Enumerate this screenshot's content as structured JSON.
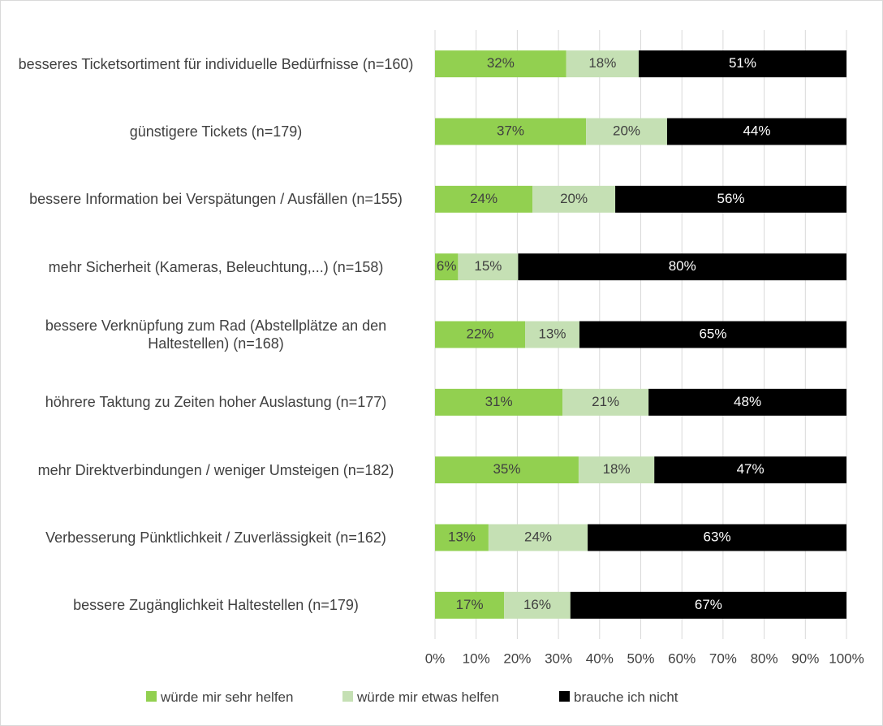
{
  "chart_data": {
    "type": "stacked_barh",
    "categories": [
      "besseres Ticketsortiment für individuelle Bedürfnisse (n=160)",
      "günstigere Tickets (n=179)",
      "bessere Information bei Verspätungen / Ausfällen (n=155)",
      "mehr Sicherheit (Kameras, Beleuchtung,...) (n=158)",
      "bessere Verknüpfung zum Rad (Abstellplätze an den Haltestellen) (n=168)",
      "höhrere Taktung zu Zeiten hoher Auslastung (n=177)",
      "mehr Direktverbindungen / weniger Umsteigen (n=182)",
      "Verbesserung Pünktlichkeit / Zuverlässigkeit (n=162)",
      "bessere Zugänglichkeit Haltestellen (n=179)"
    ],
    "series": [
      {
        "name": "würde mir sehr helfen",
        "color": "#92d050",
        "values": [
          31.9,
          36.7,
          23.7,
          5.6,
          21.9,
          31.0,
          34.9,
          13.0,
          16.8
        ],
        "value_labels": [
          "32%",
          "37%",
          "24%",
          "6%",
          "22%",
          "31%",
          "35%",
          "13%",
          "17%"
        ]
      },
      {
        "name": "würde mir etwas helfen",
        "color": "#c5e0b4",
        "values": [
          17.6,
          19.7,
          20.1,
          14.6,
          13.2,
          20.9,
          18.4,
          24.1,
          16.1
        ],
        "value_labels": [
          "18%",
          "20%",
          "20%",
          "15%",
          "13%",
          "21%",
          "18%",
          "24%",
          "16%"
        ]
      },
      {
        "name": "brauche ich nicht",
        "color": "#000000",
        "values": [
          50.5,
          43.6,
          56.2,
          79.8,
          64.9,
          48.1,
          46.7,
          62.9,
          67.1
        ],
        "value_labels": [
          "51%",
          "44%",
          "56%",
          "80%",
          "65%",
          "48%",
          "47%",
          "63%",
          "67%"
        ]
      }
    ],
    "xlim": [
      0,
      100
    ],
    "xticks": [
      {
        "value": 0,
        "label": "0%"
      },
      {
        "value": 10,
        "label": "10%"
      },
      {
        "value": 20,
        "label": "20%"
      },
      {
        "value": 30,
        "label": "30%"
      },
      {
        "value": 40,
        "label": "40%"
      },
      {
        "value": 50,
        "label": "50%"
      },
      {
        "value": 60,
        "label": "60%"
      },
      {
        "value": 70,
        "label": "70%"
      },
      {
        "value": 80,
        "label": "80%"
      },
      {
        "value": 90,
        "label": "90%"
      },
      {
        "value": 100,
        "label": "100%"
      }
    ],
    "grid": true,
    "legend": "bottom"
  }
}
